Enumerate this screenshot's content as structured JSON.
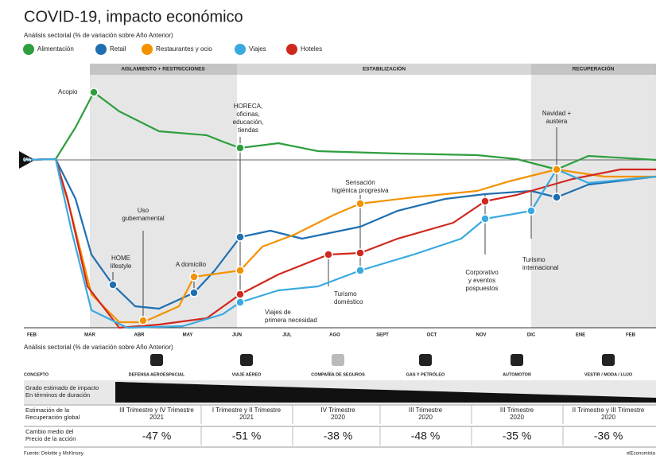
{
  "header": {
    "title": "COVID-19, impacto económico",
    "subtitle": "Análisis sectorial (% de variación sobre Año Anterior)",
    "legend": [
      "Alimentación",
      "Retail",
      "Restaurantes y ocio",
      "Viajes",
      "Hoteles"
    ]
  },
  "chart": {
    "phases": [
      "AISLAMIENTO + RESTRICCIONES",
      "ESTABILIZACIÓN",
      "RECUPERACIÓN"
    ],
    "months": [
      "FEB",
      "MAR",
      "ABR",
      "MAY",
      "JUN",
      "JUL",
      "AGO",
      "SEPT",
      "OCT",
      "NOV",
      "DIC",
      "ENE",
      "FEB"
    ],
    "zero_label": "0%",
    "annotations": [
      {
        "lines": [
          "Acopio"
        ]
      },
      {
        "lines": [
          "HOME",
          "lifestyle"
        ]
      },
      {
        "lines": [
          "Uso",
          "gubernamental"
        ]
      },
      {
        "lines": [
          "A domicilio"
        ]
      },
      {
        "lines": [
          "HORECA,",
          "oficinas,",
          "educación,",
          "tiendas"
        ]
      },
      {
        "lines": [
          "Viajes de",
          "primera necesidad"
        ]
      },
      {
        "lines": [
          "Turismo",
          "doméstico"
        ]
      },
      {
        "lines": [
          "Sensación",
          "higiénica progresiva"
        ]
      },
      {
        "lines": [
          "Corporativo",
          "y eventos",
          "pospuestos"
        ]
      },
      {
        "lines": [
          "Turismo",
          "internacional"
        ]
      },
      {
        "lines": [
          "Navidad +",
          "austera"
        ]
      }
    ]
  },
  "table": {
    "subtitle": "Análisis sectorial (% de variación sobre Año Anterior)",
    "concept_header": "CONCEPTO",
    "columns": [
      "DEFENSA AEROESPACIAL",
      "VIAJE AÉREO",
      "COMPAÑÍA DE SEGUROS",
      "GAS Y PETRÓLEO",
      "AUTOMOTOR",
      "VESTIR / MODA / LUJO"
    ],
    "rows": [
      {
        "label": [
          "Grado estimado de impacto",
          "En términos de duración"
        ]
      },
      {
        "label": [
          "Estimación de la",
          "Recuperación global"
        ],
        "cells": [
          [
            "III Trimestre y IV Trimestre",
            "2021"
          ],
          [
            "I Trimestre y II Trimestre",
            "2021"
          ],
          [
            "IV Trimestre",
            "2020"
          ],
          [
            "III Trimestre",
            "2020"
          ],
          [
            "III Trimestre",
            "2020"
          ],
          [
            "II Trimestre y III Trimestre",
            "2020"
          ]
        ]
      },
      {
        "label": [
          "Cambio medio del",
          "Precio de la acción"
        ],
        "cells": [
          "-47 %",
          "-51 %",
          "-38 %",
          "-48 %",
          "-35 %",
          "-36 %"
        ]
      }
    ]
  },
  "footer": {
    "source": "Fuente: Deloitte y McKinsey.",
    "brand": "elEconomista"
  }
}
